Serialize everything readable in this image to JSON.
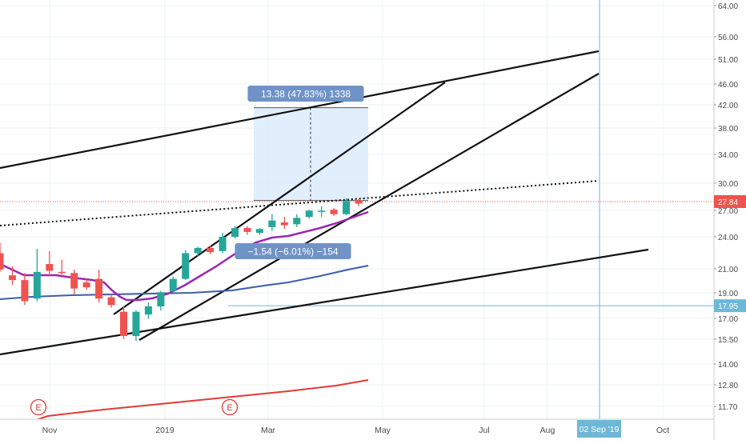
{
  "chart_data": {
    "type": "candlestick",
    "scale": "log",
    "price_axis": {
      "ticks": [
        "64.00",
        "56.00",
        "51.00",
        "46.00",
        "42.00",
        "38.00",
        "34.00",
        "30.00",
        "27.00",
        "24.00",
        "21.00",
        "19.00",
        "17.00",
        "15.50",
        "14.00",
        "12.80",
        "11.70"
      ],
      "last_price_label": "27.84",
      "last_price": 27.84,
      "crosshair_label": "17.95",
      "crosshair_price": 17.95
    },
    "time_axis": {
      "ticks": [
        "Nov",
        "2019",
        "Mar",
        "May",
        "Jul",
        "Aug",
        "Oct"
      ],
      "crosshair_label": "02 Sep '19"
    },
    "candles": [
      {
        "o": 22.4,
        "h": 23.4,
        "c": 20.9,
        "l": 20.7
      },
      {
        "o": 20.4,
        "h": 21.2,
        "c": 20.0,
        "l": 19.6
      },
      {
        "o": 20.0,
        "h": 20.6,
        "c": 18.3,
        "l": 18.0
      },
      {
        "o": 18.5,
        "h": 22.8,
        "c": 20.7,
        "l": 18.3
      },
      {
        "o": 21.4,
        "h": 22.6,
        "c": 20.8,
        "l": 20.4
      },
      {
        "o": 20.7,
        "h": 21.8,
        "c": 20.6,
        "l": 20.2
      },
      {
        "o": 20.6,
        "h": 20.9,
        "c": 19.3,
        "l": 18.8
      },
      {
        "o": 19.8,
        "h": 20.1,
        "c": 19.4,
        "l": 19.2
      },
      {
        "o": 20.1,
        "h": 20.9,
        "c": 18.5,
        "l": 18.2
      },
      {
        "o": 18.6,
        "h": 18.9,
        "c": 18.0,
        "l": 17.8
      },
      {
        "o": 17.5,
        "h": 17.9,
        "c": 15.8,
        "l": 15.6
      },
      {
        "o": 15.8,
        "h": 17.6,
        "c": 17.5,
        "l": 15.5
      },
      {
        "o": 17.3,
        "h": 18.2,
        "c": 17.9,
        "l": 17.0
      },
      {
        "o": 17.9,
        "h": 19.1,
        "c": 19.0,
        "l": 17.6
      },
      {
        "o": 19.1,
        "h": 20.3,
        "c": 20.1,
        "l": 18.9
      },
      {
        "o": 20.1,
        "h": 22.7,
        "c": 22.4,
        "l": 20.0
      },
      {
        "o": 22.4,
        "h": 23.0,
        "c": 22.9,
        "l": 22.1
      },
      {
        "o": 22.9,
        "h": 23.1,
        "c": 22.5,
        "l": 22.3
      },
      {
        "o": 22.6,
        "h": 24.4,
        "c": 24.0,
        "l": 22.4
      },
      {
        "o": 24.0,
        "h": 25.1,
        "c": 24.9,
        "l": 23.8
      },
      {
        "o": 24.9,
        "h": 25.1,
        "c": 24.5,
        "l": 24.2
      },
      {
        "o": 24.4,
        "h": 24.9,
        "c": 24.8,
        "l": 24.2
      },
      {
        "o": 25.0,
        "h": 26.4,
        "c": 25.7,
        "l": 24.6
      },
      {
        "o": 25.5,
        "h": 26.1,
        "c": 25.2,
        "l": 24.8
      },
      {
        "o": 25.3,
        "h": 26.4,
        "c": 26.0,
        "l": 25.0
      },
      {
        "o": 26.1,
        "h": 26.9,
        "c": 26.8,
        "l": 25.9
      },
      {
        "o": 26.8,
        "h": 27.3,
        "c": 26.8,
        "l": 26.1
      },
      {
        "o": 26.9,
        "h": 27.1,
        "c": 26.4,
        "l": 26.2
      },
      {
        "o": 26.4,
        "h": 28.2,
        "c": 27.9,
        "l": 26.3
      },
      {
        "o": 28.0,
        "h": 28.1,
        "c": 27.6,
        "l": 27.3
      }
    ],
    "measure_up": {
      "label": "13.38 (47.83%) 1338",
      "from": 27.97,
      "to": 41.35
    },
    "measure_down": {
      "label": "−1.54 (−6.01%) −154"
    },
    "earnings_label": "E"
  },
  "colors": {
    "up": "#26a69a",
    "down": "#ef5350",
    "ma_fast": "#9c27b0",
    "ma_mid": "#3c5ea8",
    "ma_slow": "#e53935",
    "measure_fill": "#dcebfb",
    "measure_label_bg": "#6f93c7",
    "crosshair": "#6fb7d6",
    "last_price_line": "#ef5350"
  }
}
